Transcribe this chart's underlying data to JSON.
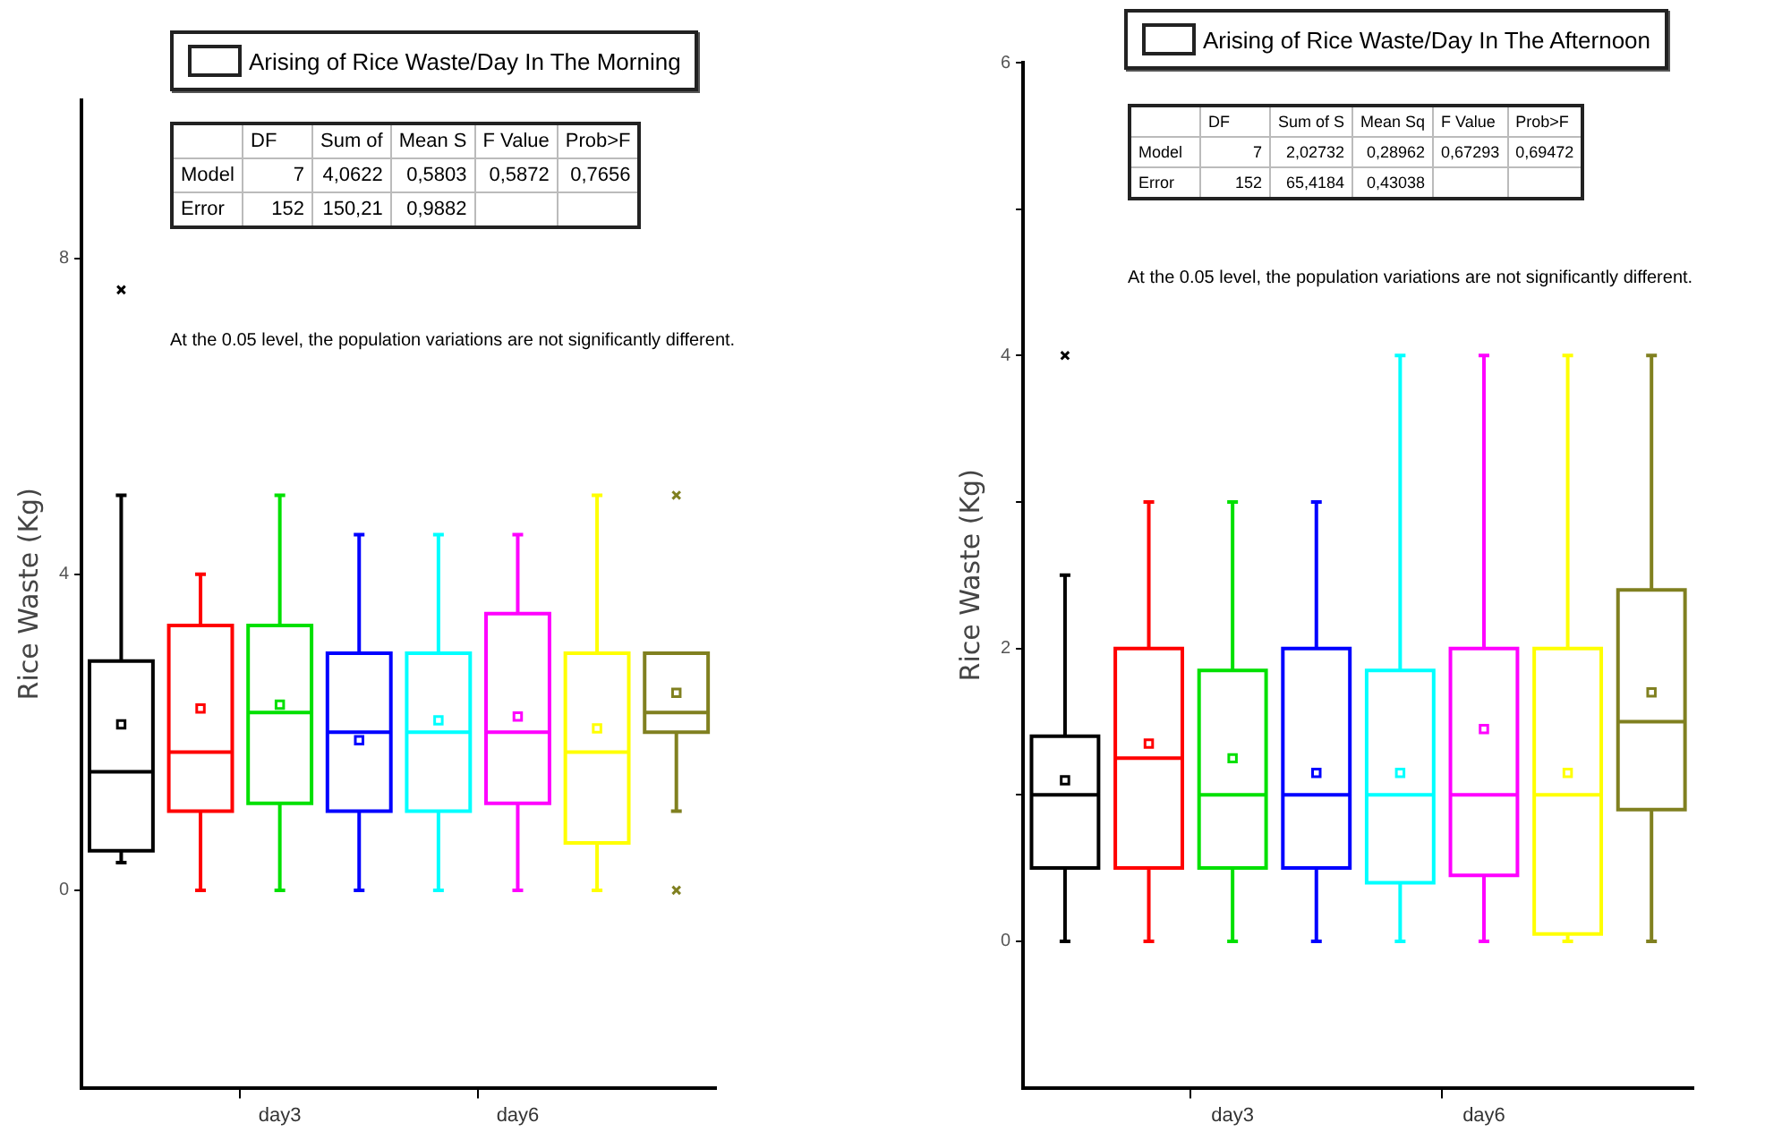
{
  "chart_data": [
    {
      "type": "box",
      "title": "Arising of Rice Waste/Day In The Morning",
      "ylabel": "Rice Waste (Kg)",
      "categories": [
        null,
        null,
        "day3",
        null,
        null,
        "day6",
        null,
        null
      ],
      "colors": [
        "#000000",
        "#ff0000",
        "#00e000",
        "#0000ff",
        "#00ffff",
        "#ff00ff",
        "#ffff00",
        "#808020"
      ],
      "boxes": [
        {
          "low": 0.35,
          "q1": 0.5,
          "median": 1.5,
          "q3": 2.9,
          "high": 5.0,
          "mean": 2.1,
          "outliers": [
            7.6
          ]
        },
        {
          "low": 0,
          "q1": 1.0,
          "median": 1.75,
          "q3": 3.35,
          "high": 4.0,
          "mean": 2.3
        },
        {
          "low": 0,
          "q1": 1.1,
          "median": 2.25,
          "q3": 3.35,
          "high": 5.0,
          "mean": 2.35
        },
        {
          "low": 0,
          "q1": 1.0,
          "median": 2.0,
          "q3": 3.0,
          "high": 4.5,
          "mean": 1.9
        },
        {
          "low": 0,
          "q1": 1.0,
          "median": 2.0,
          "q3": 3.0,
          "high": 4.5,
          "mean": 2.15
        },
        {
          "low": 0,
          "q1": 1.1,
          "median": 2.0,
          "q3": 3.5,
          "high": 4.5,
          "mean": 2.2
        },
        {
          "low": 0,
          "q1": 0.6,
          "median": 1.75,
          "q3": 3.0,
          "high": 5.0,
          "mean": 2.05
        },
        {
          "low": 1.0,
          "q1": 2.0,
          "median": 2.25,
          "q3": 3.0,
          "high": 3.0,
          "mean": 2.5,
          "outliers": [
            5.0,
            0
          ]
        }
      ],
      "ylim": [
        -2.5,
        10
      ],
      "yticks": [
        0,
        4,
        8
      ],
      "annotations": [
        "\tDF\tSum of\tMean S\tF Value\tProb>F",
        "Model\t7\t4,0622\t0,5803\t0,5872\t0,7656",
        "Error\t152\t150,21\t0,9882\t\t",
        "At the 0.05 level, the population variations are not significantly different."
      ]
    },
    {
      "type": "box",
      "title": "Arising of Rice Waste/Day In The Afternoon",
      "ylabel": "Rice Waste (Kg)",
      "categories": [
        null,
        null,
        "day3",
        null,
        null,
        "day6",
        null,
        null
      ],
      "colors": [
        "#000000",
        "#ff0000",
        "#00e000",
        "#0000ff",
        "#00ffff",
        "#ff00ff",
        "#ffff00",
        "#808020"
      ],
      "boxes": [
        {
          "low": 0,
          "q1": 0.5,
          "median": 1.0,
          "q3": 1.4,
          "high": 2.5,
          "mean": 1.1,
          "outliers": [
            4.0
          ]
        },
        {
          "low": 0,
          "q1": 0.5,
          "median": 1.25,
          "q3": 2.0,
          "high": 3.0,
          "mean": 1.35
        },
        {
          "low": 0,
          "q1": 0.5,
          "median": 1.0,
          "q3": 1.85,
          "high": 3.0,
          "mean": 1.25
        },
        {
          "low": 0,
          "q1": 0.5,
          "median": 1.0,
          "q3": 2.0,
          "high": 3.0,
          "mean": 1.15
        },
        {
          "low": 0,
          "q1": 0.4,
          "median": 1.0,
          "q3": 1.85,
          "high": 4.0,
          "mean": 1.15
        },
        {
          "low": 0,
          "q1": 0.45,
          "median": 1.0,
          "q3": 2.0,
          "high": 4.0,
          "mean": 1.45
        },
        {
          "low": 0,
          "q1": 0.05,
          "median": 1.0,
          "q3": 2.0,
          "high": 4.0,
          "mean": 1.15
        },
        {
          "low": 0,
          "q1": 0.9,
          "median": 1.5,
          "q3": 2.4,
          "high": 4.0,
          "mean": 1.7
        }
      ],
      "ylim": [
        -1,
        6
      ],
      "yticks": [
        0,
        {
          "value": 1,
          "label": null
        },
        2,
        {
          "value": 3,
          "label": null
        },
        4,
        {
          "value": 5,
          "label": null
        },
        6
      ],
      "annotations": [
        "\tDF\tSum of S\tMean Sq\tF Value\tProb>F",
        "Model\t7\t2,02732\t0,28962\t0,67293\t0,69472",
        "Error\t152\t65,4184\t0,43038\t\t",
        "At the 0.05 level, the population variations are not significantly different."
      ]
    }
  ]
}
